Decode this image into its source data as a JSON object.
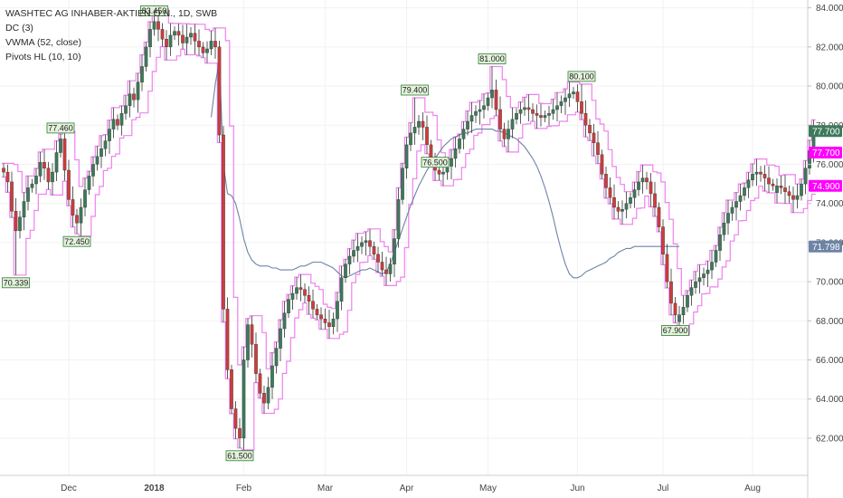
{
  "legend": {
    "line1": "WASHTEC AG INHABER-AKTIEN O.N., 1D, SWB",
    "line2": "DC (3)",
    "line3": "VWMA (52, close)",
    "line4": "Pivots HL (10, 10)"
  },
  "colors": {
    "up": "#3d7a5c",
    "down": "#d03c3c",
    "dc": "#ee82ee",
    "vwma": "#6d84a6",
    "pivot_bg": "#e4f2dc",
    "pivot_border": "#2e7d32",
    "grid": "#f2f2f2",
    "axis_text": "#444444"
  },
  "chart_data": {
    "type": "candlestick",
    "title": "WASHTEC AG INHABER-AKTIEN O.N., 1D, SWB",
    "ylim": [
      60.1,
      84.4
    ],
    "y_ticks": [
      "62.000",
      "64.000",
      "66.000",
      "68.000",
      "70.000",
      "72.000",
      "74.000",
      "76.000",
      "78.000",
      "80.000",
      "82.000",
      "84.000"
    ],
    "x_ticks": [
      {
        "label": "Dec",
        "i": 16,
        "bold": false
      },
      {
        "label": "2018",
        "i": 37,
        "bold": true
      },
      {
        "label": "Feb",
        "i": 59,
        "bold": false
      },
      {
        "label": "Mar",
        "i": 79,
        "bold": false
      },
      {
        "label": "Apr",
        "i": 99,
        "bold": false
      },
      {
        "label": "May",
        "i": 119,
        "bold": false
      },
      {
        "label": "Jun",
        "i": 141,
        "bold": false
      },
      {
        "label": "Jul",
        "i": 162,
        "bold": false
      },
      {
        "label": "Aug",
        "i": 184,
        "bold": false
      }
    ],
    "close": [
      75.6,
      75.1,
      73.6,
      72.6,
      73.3,
      74.1,
      74.8,
      75.0,
      75.4,
      76.1,
      75.8,
      75.1,
      75.6,
      76.6,
      77.3,
      75.7,
      74.2,
      73.4,
      73.0,
      73.8,
      74.7,
      75.4,
      76.0,
      76.4,
      76.8,
      77.2,
      77.8,
      78.3,
      78.0,
      78.6,
      79.0,
      79.6,
      79.3,
      80.2,
      81.0,
      82.0,
      82.9,
      83.3,
      82.9,
      82.4,
      82.0,
      82.6,
      82.8,
      82.6,
      82.2,
      82.5,
      82.7,
      82.3,
      82.0,
      81.7,
      81.9,
      82.3,
      82.0,
      77.5,
      68.6,
      65.5,
      63.5,
      62.5,
      62.0,
      66.0,
      67.8,
      66.8,
      65.3,
      64.3,
      63.8,
      64.6,
      65.7,
      66.6,
      67.6,
      68.4,
      69.1,
      69.4,
      69.7,
      69.6,
      69.3,
      69.0,
      68.6,
      68.3,
      68.1,
      67.9,
      67.7,
      68.1,
      69.0,
      70.2,
      70.9,
      71.3,
      71.6,
      71.8,
      72.0,
      72.1,
      71.8,
      71.4,
      71.0,
      70.6,
      70.4,
      70.9,
      72.2,
      74.2,
      75.8,
      77.0,
      77.6,
      77.9,
      78.2,
      77.9,
      77.0,
      76.2,
      75.7,
      75.5,
      75.6,
      75.9,
      76.3,
      76.8,
      77.3,
      77.8,
      78.2,
      78.5,
      78.7,
      78.8,
      79.0,
      79.4,
      79.8,
      78.8,
      77.8,
      77.3,
      77.8,
      78.3,
      78.6,
      78.8,
      78.9,
      78.8,
      78.6,
      78.5,
      78.4,
      78.5,
      78.6,
      78.8,
      79.0,
      79.2,
      79.4,
      79.6,
      79.7,
      79.2,
      78.6,
      78.0,
      77.6,
      77.1,
      76.5,
      75.5,
      74.8,
      74.3,
      73.8,
      73.6,
      73.7,
      74.0,
      74.3,
      74.7,
      75.1,
      75.3,
      75.1,
      74.5,
      73.8,
      72.8,
      71.4,
      70.0,
      68.9,
      68.3,
      68.3,
      68.7,
      69.3,
      69.7,
      70.0,
      70.2,
      70.4,
      70.6,
      71.0,
      71.6,
      72.4,
      73.0,
      73.5,
      73.8,
      74.1,
      74.4,
      74.8,
      75.2,
      75.5,
      75.6,
      75.5,
      75.3,
      75.0,
      74.9,
      74.9,
      74.8,
      74.6,
      74.4,
      74.2,
      74.4,
      75.0,
      75.8,
      76.7,
      77.6
    ],
    "vwma_start": 51,
    "vwma": [
      78.4,
      80.1,
      81.3,
      76.0,
      74.5,
      74.4,
      74.0,
      73.2,
      72.2,
      71.5,
      71.1,
      70.9,
      70.8,
      70.8,
      70.8,
      70.7,
      70.7,
      70.6,
      70.6,
      70.6,
      70.6,
      70.7,
      70.8,
      70.8,
      70.9,
      71.0,
      71.0,
      71.0,
      70.9,
      70.8,
      70.7,
      70.5,
      70.3,
      70.2,
      70.3,
      70.4,
      70.5,
      70.6,
      70.6,
      70.7,
      70.6,
      70.5,
      70.4,
      70.5,
      70.9,
      71.5,
      72.1,
      72.7,
      73.3,
      73.9,
      74.4,
      74.9,
      75.3,
      75.7,
      76.0,
      76.3,
      76.6,
      76.9,
      77.1,
      77.3,
      77.4,
      77.5,
      77.6,
      77.6,
      77.7,
      77.8,
      77.8,
      77.8,
      77.8,
      77.8,
      77.7,
      77.7,
      77.6,
      77.5,
      77.4,
      77.3,
      77.1,
      76.9,
      76.6,
      76.3,
      75.9,
      75.4,
      74.8,
      74.1,
      73.3,
      72.4,
      71.6,
      70.9,
      70.4,
      70.2,
      70.2,
      70.3,
      70.5,
      70.6,
      70.7,
      70.8,
      70.9,
      71.0,
      71.2,
      71.3,
      71.5,
      71.6,
      71.7,
      71.7,
      71.8,
      71.8,
      71.8,
      71.8,
      71.8,
      71.8,
      71.8,
      71.8,
      71.8,
      71.8,
      71.8,
      71.798
    ],
    "pivots": [
      {
        "label": "70.339",
        "i": 3,
        "value": 70.339,
        "pos": "below"
      },
      {
        "label": "77.460",
        "i": 14,
        "value": 77.46,
        "pos": "above"
      },
      {
        "label": "72.450",
        "i": 18,
        "value": 72.45,
        "pos": "below"
      },
      {
        "label": "83.450",
        "i": 37,
        "value": 83.45,
        "pos": "above"
      },
      {
        "label": "61.500",
        "i": 58,
        "value": 61.5,
        "pos": "below"
      },
      {
        "label": "79.400",
        "i": 101,
        "value": 79.4,
        "pos": "above"
      },
      {
        "label": "76.500",
        "i": 106,
        "value": 76.5,
        "pos": "below"
      },
      {
        "label": "81.000",
        "i": 120,
        "value": 81.0,
        "pos": "above"
      },
      {
        "label": "80.100",
        "i": 142,
        "value": 80.1,
        "pos": "above"
      },
      {
        "label": "67.900",
        "i": 165,
        "value": 67.9,
        "pos": "below"
      }
    ],
    "price_labels": [
      {
        "label": "77.700",
        "value": 77.7,
        "bg": "#3d7a5c"
      },
      {
        "label": "77.700",
        "value": 76.6,
        "bg": "#ff00ff"
      },
      {
        "label": "74.900",
        "value": 74.9,
        "bg": "#ff00ff"
      },
      {
        "label": "71.798",
        "value": 71.798,
        "bg": "#6d84a6"
      }
    ]
  }
}
